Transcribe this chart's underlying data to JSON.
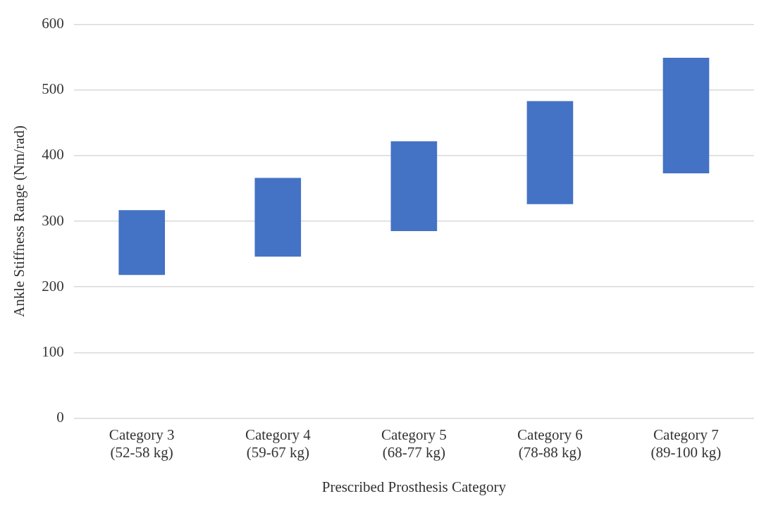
{
  "chart_data": {
    "type": "bar",
    "xlabel": "Prescribed Prosthesis Category",
    "ylabel": "Ankle Stiffness Range (Nm/rad)",
    "categories": [
      "Category 3\n(52-58 kg)",
      "Category 4\n(59-67 kg)",
      "Category 5\n(68-77 kg)",
      "Category 6\n(78-88 kg)",
      "Category 7\n(89-100 kg)"
    ],
    "base": [
      218,
      246,
      285,
      326,
      373
    ],
    "values": [
      99,
      120,
      137,
      157,
      176
    ],
    "color": "#4472c4",
    "ylim": [
      0,
      600
    ],
    "yticks": [
      0,
      100,
      200,
      300,
      400,
      500,
      600
    ],
    "grid": "y"
  }
}
